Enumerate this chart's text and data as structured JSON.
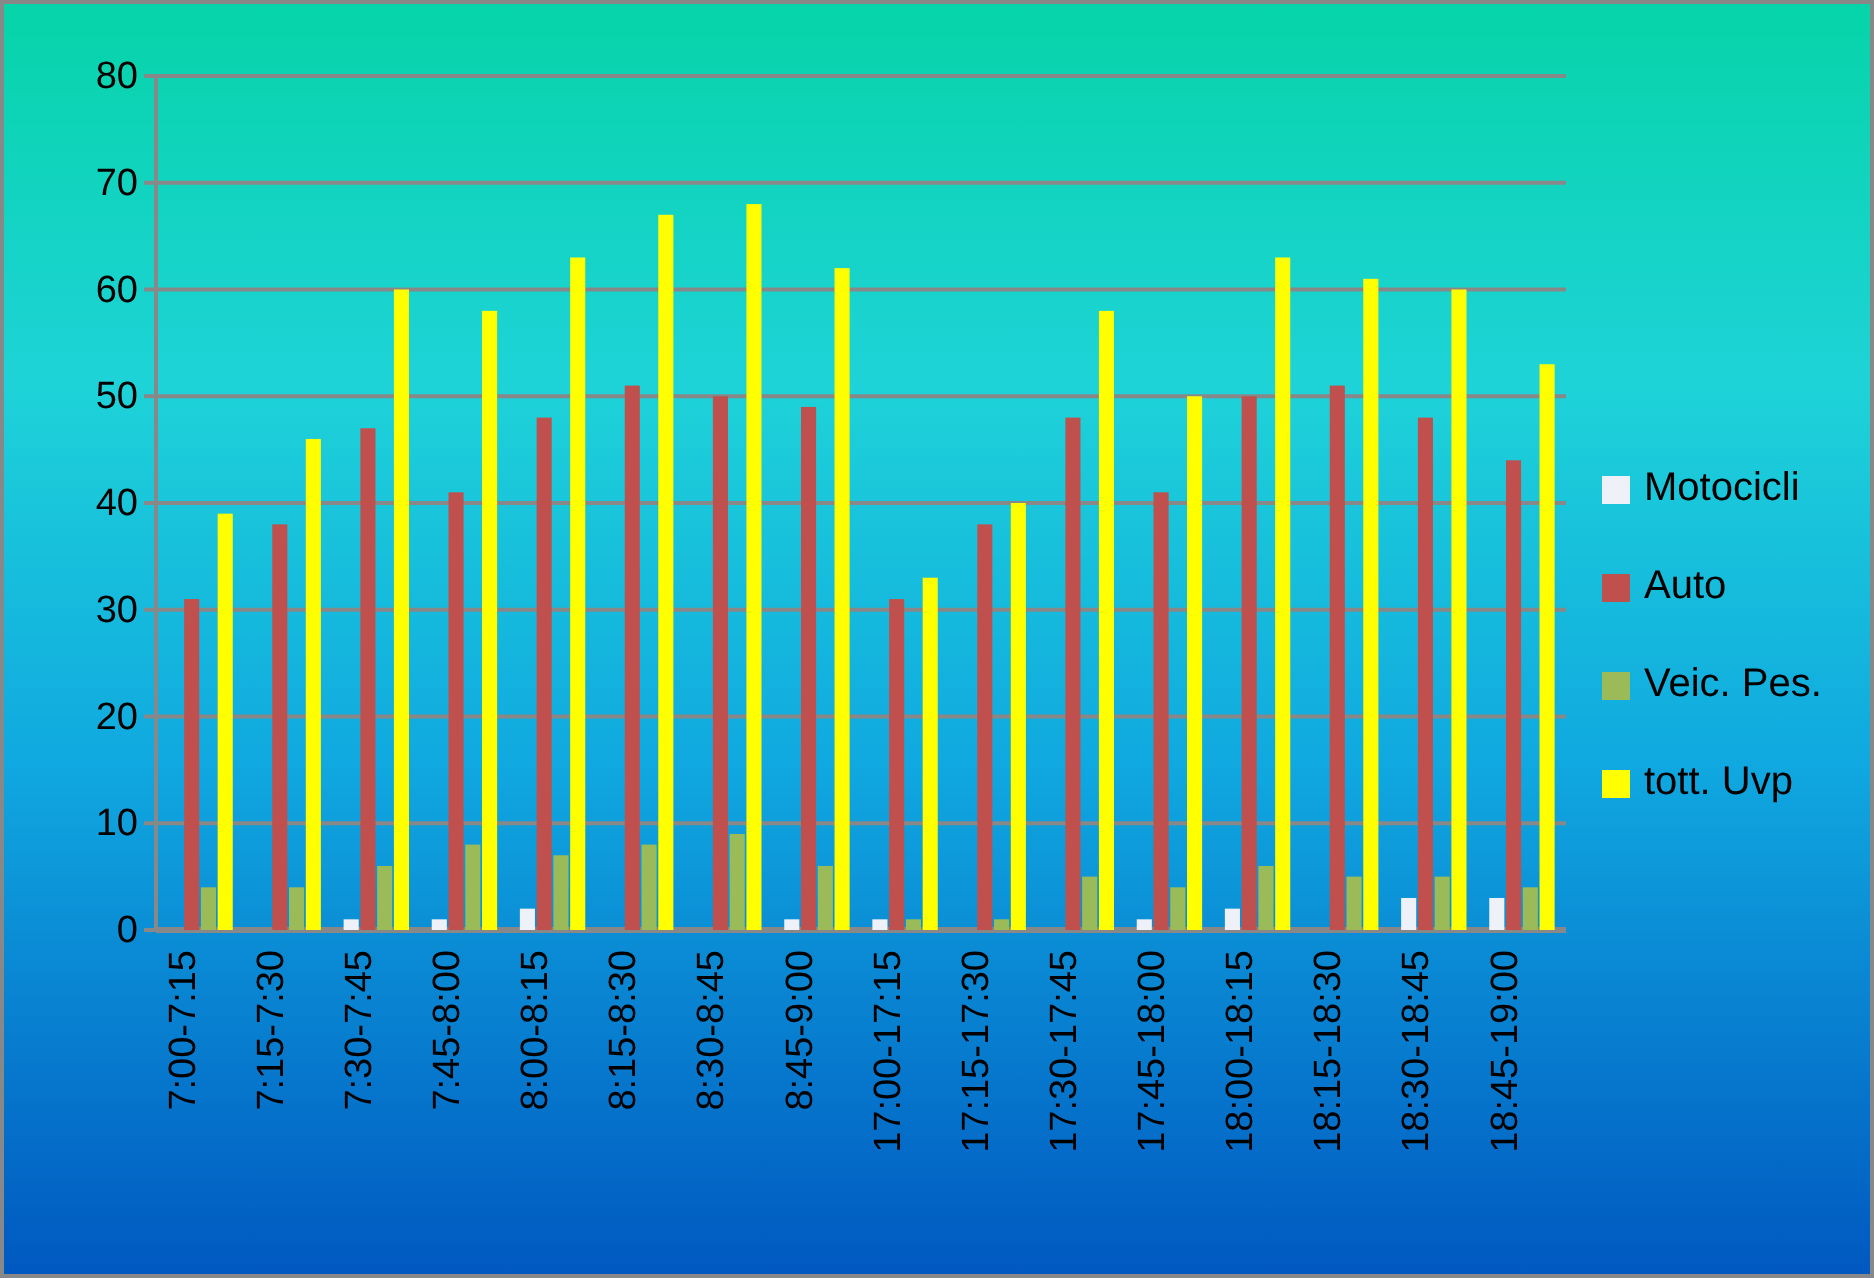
{
  "chart_data": {
    "type": "bar",
    "categories": [
      "7:00-7:15",
      "7:15-7:30",
      "7:30-7:45",
      "7:45-8:00",
      "8:00-8:15",
      "8:15-8:30",
      "8:30-8:45",
      "8:45-9:00",
      "17:00-17:15",
      "17:15-17:30",
      "17:30-17:45",
      "17:45-18:00",
      "18:00-18:15",
      "18:15-18:30",
      "18:30-18:45",
      "18:45-19:00"
    ],
    "series": [
      {
        "name": "Motocicli",
        "color": "#eef2f8",
        "values": [
          0,
          0,
          1,
          1,
          2,
          0,
          0,
          1,
          1,
          0,
          0,
          1,
          2,
          0,
          3,
          3
        ]
      },
      {
        "name": "Auto",
        "color": "#c0504d",
        "values": [
          31,
          38,
          47,
          41,
          48,
          51,
          50,
          49,
          31,
          38,
          48,
          41,
          50,
          51,
          48,
          44
        ]
      },
      {
        "name": "Veic. Pes.",
        "color": "#9bbb59",
        "values": [
          4,
          4,
          6,
          8,
          7,
          8,
          9,
          6,
          1,
          1,
          5,
          4,
          6,
          5,
          5,
          4
        ]
      },
      {
        "name": "tott. Uvp",
        "color": "#ffff00",
        "values": [
          39,
          46,
          60,
          58,
          63,
          67,
          68,
          62,
          33,
          40,
          58,
          50,
          63,
          61,
          60,
          53
        ]
      }
    ],
    "ylim": [
      0,
      80
    ],
    "yticks": [
      0,
      10,
      20,
      30,
      40,
      50,
      60,
      70,
      80
    ],
    "grid": "y",
    "legend": "right"
  }
}
